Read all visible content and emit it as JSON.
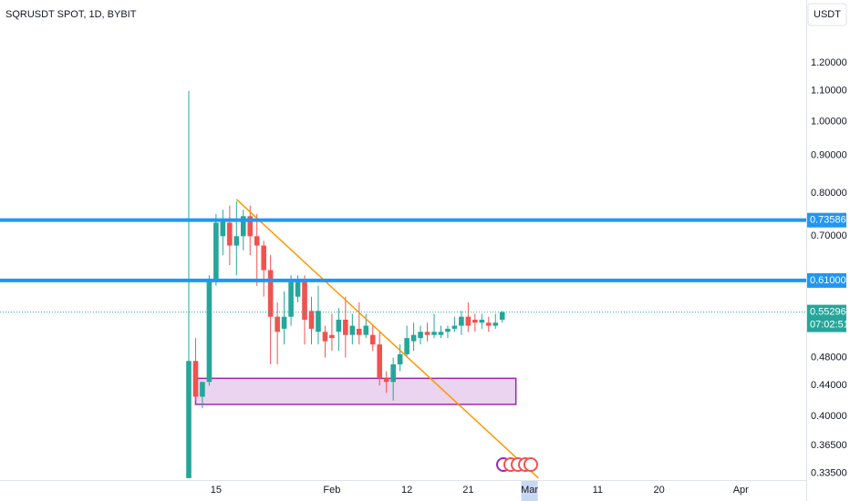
{
  "chart_data": {
    "type": "candlestick",
    "title": "SQRUSDT SPOT, 1D, BYBIT",
    "currency": "USDT",
    "open": [
      0.33,
      0.475,
      0.425,
      0.445,
      0.61,
      0.7,
      0.73,
      0.68,
      0.7,
      0.745,
      0.7,
      0.68,
      0.63,
      0.545,
      0.525,
      0.545,
      0.58,
      0.61,
      0.555,
      0.52,
      0.52,
      0.515,
      0.52,
      0.54,
      0.515,
      0.525,
      0.515,
      0.515,
      0.5,
      0.45,
      0.445,
      0.47,
      0.485,
      0.505,
      0.51,
      0.52,
      0.515,
      0.515,
      0.52,
      0.525,
      0.53,
      0.545,
      0.54,
      0.535,
      0.535,
      0.53,
      0.54
    ],
    "high": [
      1.1,
      0.51,
      0.445,
      0.62,
      0.75,
      0.76,
      0.77,
      0.78,
      0.76,
      0.77,
      0.75,
      0.69,
      0.66,
      0.57,
      0.59,
      0.62,
      0.62,
      0.62,
      0.58,
      0.6,
      0.53,
      0.55,
      0.56,
      0.58,
      0.55,
      0.57,
      0.55,
      0.53,
      0.52,
      0.46,
      0.48,
      0.5,
      0.53,
      0.535,
      0.53,
      0.535,
      0.55,
      0.53,
      0.53,
      0.545,
      0.555,
      0.57,
      0.55,
      0.55,
      0.545,
      0.55,
      0.555
    ],
    "low": [
      0.33,
      0.42,
      0.41,
      0.44,
      0.6,
      0.66,
      0.64,
      0.62,
      0.67,
      0.66,
      0.6,
      0.58,
      0.47,
      0.47,
      0.5,
      0.53,
      0.57,
      0.5,
      0.5,
      0.5,
      0.48,
      0.49,
      0.49,
      0.48,
      0.5,
      0.5,
      0.51,
      0.49,
      0.44,
      0.43,
      0.42,
      0.46,
      0.48,
      0.49,
      0.5,
      0.505,
      0.51,
      0.51,
      0.51,
      0.52,
      0.515,
      0.52,
      0.52,
      0.525,
      0.52,
      0.525,
      0.535
    ],
    "close": [
      0.475,
      0.425,
      0.445,
      0.61,
      0.73,
      0.735,
      0.68,
      0.7,
      0.745,
      0.7,
      0.68,
      0.63,
      0.545,
      0.52,
      0.545,
      0.61,
      0.61,
      0.54,
      0.525,
      0.555,
      0.505,
      0.51,
      0.54,
      0.515,
      0.53,
      0.515,
      0.53,
      0.5,
      0.45,
      0.445,
      0.47,
      0.485,
      0.51,
      0.515,
      0.52,
      0.515,
      0.52,
      0.52,
      0.525,
      0.53,
      0.545,
      0.53,
      0.535,
      0.54,
      0.53,
      0.535,
      0.55296
    ],
    "up_color": "#26a69a",
    "down_color": "#ef5350",
    "log_scale": true,
    "grid": false,
    "xlim": [
      -27.7,
      90.6
    ],
    "ylim": [
      0.328,
      1.459
    ],
    "xticks": [
      {
        "value": 4,
        "label": "15"
      },
      {
        "value": 21,
        "label": "Feb"
      },
      {
        "value": 32,
        "label": "12"
      },
      {
        "value": 41,
        "label": "21"
      },
      {
        "value": 50,
        "label": "Mar"
      },
      {
        "value": 60,
        "label": "11"
      },
      {
        "value": 69,
        "label": "20"
      },
      {
        "value": 81,
        "label": "Apr"
      }
    ],
    "yticks": [
      {
        "value": 1.2,
        "label": "1.20000"
      },
      {
        "value": 1.1,
        "label": "1.10000"
      },
      {
        "value": 1.0,
        "label": "1.00000"
      },
      {
        "value": 0.9,
        "label": "0.90000"
      },
      {
        "value": 0.8,
        "label": "0.80000"
      },
      {
        "value": 0.7,
        "label": "0.70000"
      },
      {
        "value": 0.48,
        "label": "0.48000"
      },
      {
        "value": 0.44,
        "label": "0.44000"
      },
      {
        "value": 0.4,
        "label": "0.40000"
      },
      {
        "value": 0.365,
        "label": "0.36500"
      },
      {
        "value": 0.335,
        "label": "0.33500"
      }
    ],
    "hlines": [
      {
        "value": 0.73586,
        "label": "0.73586",
        "color": "#2196f3"
      },
      {
        "value": 0.61,
        "label": "0.61000",
        "color": "#2196f3"
      }
    ],
    "last_price": {
      "value": 0.55296,
      "label": "0.55296",
      "countdown": "07:02:51",
      "color": "#26a69a"
    },
    "zone": {
      "x": [
        1,
        48
      ],
      "y": [
        0.415,
        0.45
      ],
      "color": "#9c27b0"
    },
    "trendline": {
      "x": [
        7,
        51.3
      ],
      "y": [
        0.785,
        0.33
      ],
      "color": "#ff9800"
    }
  }
}
